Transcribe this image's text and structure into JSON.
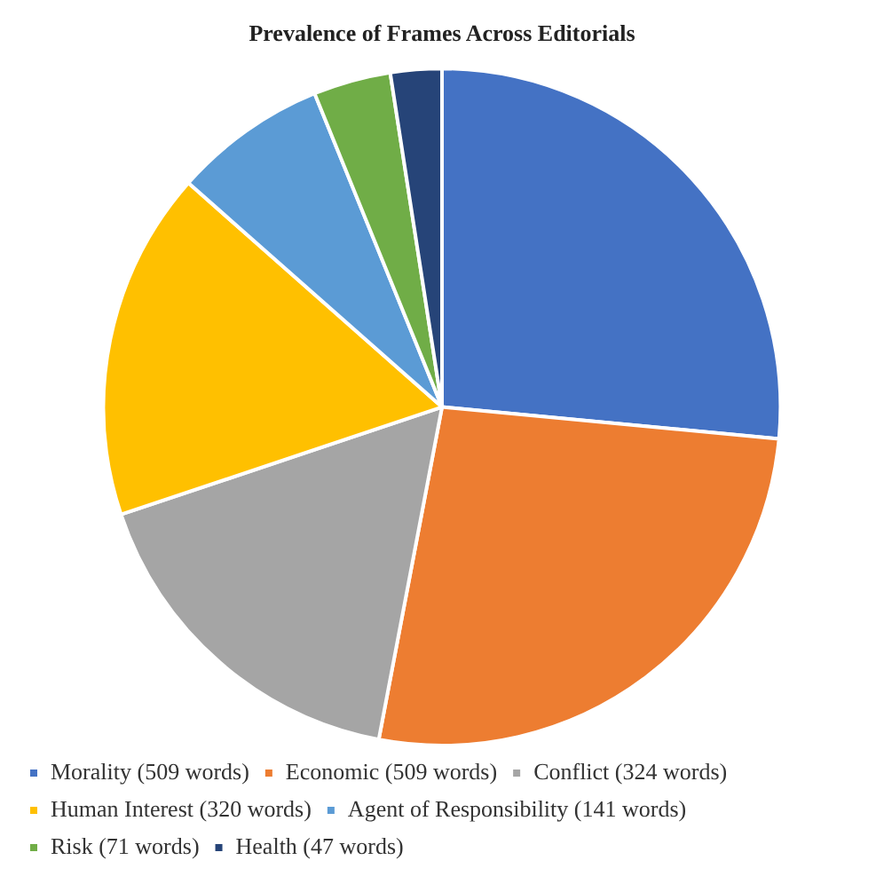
{
  "chart_data": {
    "type": "pie",
    "title": "Prevalence of Frames Across Editorials",
    "categories": [
      "Morality (509 words)",
      "Economic (509 words)",
      "Conflict (324 words)",
      "Human Interest (320 words)",
      "Agent of Responsibility (141 words)",
      "Risk (71 words)",
      "Health (47 words)"
    ],
    "values": [
      509,
      509,
      324,
      320,
      141,
      71,
      47
    ],
    "colors": [
      "#4472c4",
      "#ed7d31",
      "#a5a5a5",
      "#ffc000",
      "#5b9bd5",
      "#70ad47",
      "#264478"
    ],
    "legend": "bottom"
  }
}
